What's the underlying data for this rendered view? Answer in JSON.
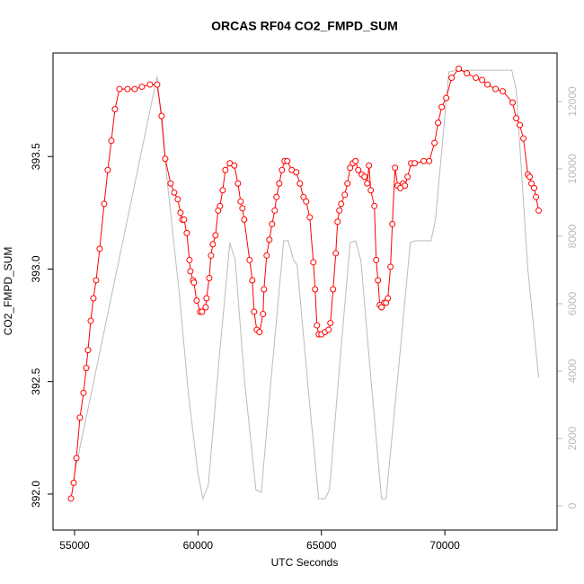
{
  "chart_data": {
    "type": "line",
    "title": "ORCAS RF04 CO2_FMPD_SUM",
    "xlabel": "UTC Seconds",
    "ylabel": "CO2_FMPD_SUM",
    "xlim": [
      54127,
      74545
    ],
    "xticks": [
      55000,
      60000,
      65000,
      70000
    ],
    "ylim": [
      391.84,
      393.96
    ],
    "yticks": [
      {
        "value": 392,
        "label": "392.0"
      },
      {
        "value": 392.5,
        "label": "392.5"
      },
      {
        "value": 393,
        "label": "393.0"
      },
      {
        "value": 393.5,
        "label": "393.5"
      }
    ],
    "y2lim": [
      -720,
      13440
    ],
    "y2ticks": [
      0,
      2000,
      4000,
      6000,
      8000,
      10000,
      12000
    ],
    "y2color": "#bbbbbb",
    "series": [
      {
        "color": "red",
        "markers": true,
        "x": [
          54855,
          54964,
          55073,
          55218,
          55364,
          55473,
          55545,
          55655,
          55764,
          55873,
          56018,
          56200,
          56345,
          56491,
          56636,
          56818,
          57145,
          57436,
          57727,
          58055,
          58345,
          58527,
          58673,
          58891,
          59036,
          59182,
          59291,
          59364,
          59436,
          59545,
          59655,
          59691,
          59800,
          59836,
          59945,
          60091,
          60164,
          60309,
          60345,
          60455,
          60527,
          60600,
          60709,
          60818,
          60891,
          61000,
          61109,
          61291,
          61473,
          61618,
          61727,
          61800,
          61873,
          62091,
          62200,
          62273,
          62382,
          62491,
          62636,
          62673,
          62782,
          62891,
          63000,
          63109,
          63182,
          63291,
          63400,
          63509,
          63618,
          63800,
          63982,
          64127,
          64273,
          64382,
          64527,
          64673,
          64745,
          64818,
          64891,
          65000,
          65145,
          65291,
          65364,
          65473,
          65582,
          65655,
          65727,
          65800,
          65945,
          66055,
          66164,
          66273,
          66382,
          66491,
          66636,
          66745,
          66855,
          66927,
          67000,
          67145,
          67218,
          67291,
          67364,
          67436,
          67545,
          67618,
          67691,
          67800,
          67873,
          67982,
          68091,
          68200,
          68309,
          68382,
          68491,
          68636,
          68782,
          69145,
          69364,
          69582,
          69727,
          69873,
          70055,
          70273,
          70564,
          70891,
          71255,
          71509,
          71727,
          72055,
          72345,
          72745,
          72891,
          73036,
          73182,
          73364,
          73436,
          73509,
          73618,
          73691,
          73800
        ],
        "values": [
          391.98,
          392.05,
          392.16,
          392.34,
          392.45,
          392.56,
          392.64,
          392.77,
          392.87,
          392.95,
          393.09,
          393.29,
          393.44,
          393.57,
          393.71,
          393.8,
          393.8,
          393.8,
          393.81,
          393.82,
          393.82,
          393.68,
          393.49,
          393.38,
          393.34,
          393.31,
          393.25,
          393.22,
          393.22,
          393.16,
          393.04,
          392.99,
          392.95,
          392.94,
          392.86,
          392.81,
          392.81,
          392.83,
          392.87,
          392.96,
          393.06,
          393.11,
          393.15,
          393.26,
          393.28,
          393.35,
          393.44,
          393.47,
          393.46,
          393.38,
          393.3,
          393.27,
          393.22,
          393.04,
          392.95,
          392.81,
          392.73,
          392.72,
          392.8,
          392.91,
          393.06,
          393.13,
          393.2,
          393.26,
          393.32,
          393.38,
          393.44,
          393.48,
          393.48,
          393.44,
          393.43,
          393.38,
          393.32,
          393.3,
          393.23,
          393.03,
          392.91,
          392.75,
          392.71,
          392.71,
          392.72,
          392.73,
          392.76,
          392.91,
          393.07,
          393.21,
          393.26,
          393.29,
          393.33,
          393.38,
          393.45,
          393.47,
          393.48,
          393.44,
          393.42,
          393.41,
          393.38,
          393.46,
          393.35,
          393.28,
          393.04,
          392.95,
          392.84,
          392.83,
          392.85,
          392.85,
          392.87,
          393.01,
          393.2,
          393.45,
          393.37,
          393.36,
          393.38,
          393.37,
          393.41,
          393.47,
          393.47,
          393.48,
          393.48,
          393.56,
          393.65,
          393.72,
          393.76,
          393.85,
          393.89,
          393.87,
          393.85,
          393.84,
          393.82,
          393.8,
          393.79,
          393.74,
          393.67,
          393.64,
          393.58,
          393.42,
          393.41,
          393.38,
          393.36,
          393.32,
          393.26
        ]
      },
      {
        "color": "#bbbbbb",
        "axis": "y2",
        "x": [
          55000,
          58345,
          58709,
          59255,
          59618,
          60000,
          60200,
          60418,
          60855,
          61291,
          61509,
          61873,
          62345,
          62564,
          63000,
          63473,
          63655,
          63873,
          64018,
          64455,
          64891,
          65145,
          65327,
          65727,
          66164,
          66382,
          66600,
          67000,
          67436,
          67618,
          68091,
          68600,
          68818,
          69436,
          69618,
          70164,
          70527,
          72709,
          72891,
          73364,
          73800
        ],
        "values": [
          960,
          12750,
          9950,
          6210,
          3280,
          960,
          210,
          610,
          4350,
          7810,
          7280,
          3810,
          480,
          400,
          4080,
          7870,
          7870,
          7280,
          7150,
          3550,
          210,
          210,
          480,
          4080,
          7810,
          7870,
          7280,
          3810,
          210,
          210,
          3810,
          7810,
          7870,
          7870,
          8480,
          12880,
          12930,
          12930,
          12350,
          7010,
          3810
        ]
      }
    ]
  }
}
